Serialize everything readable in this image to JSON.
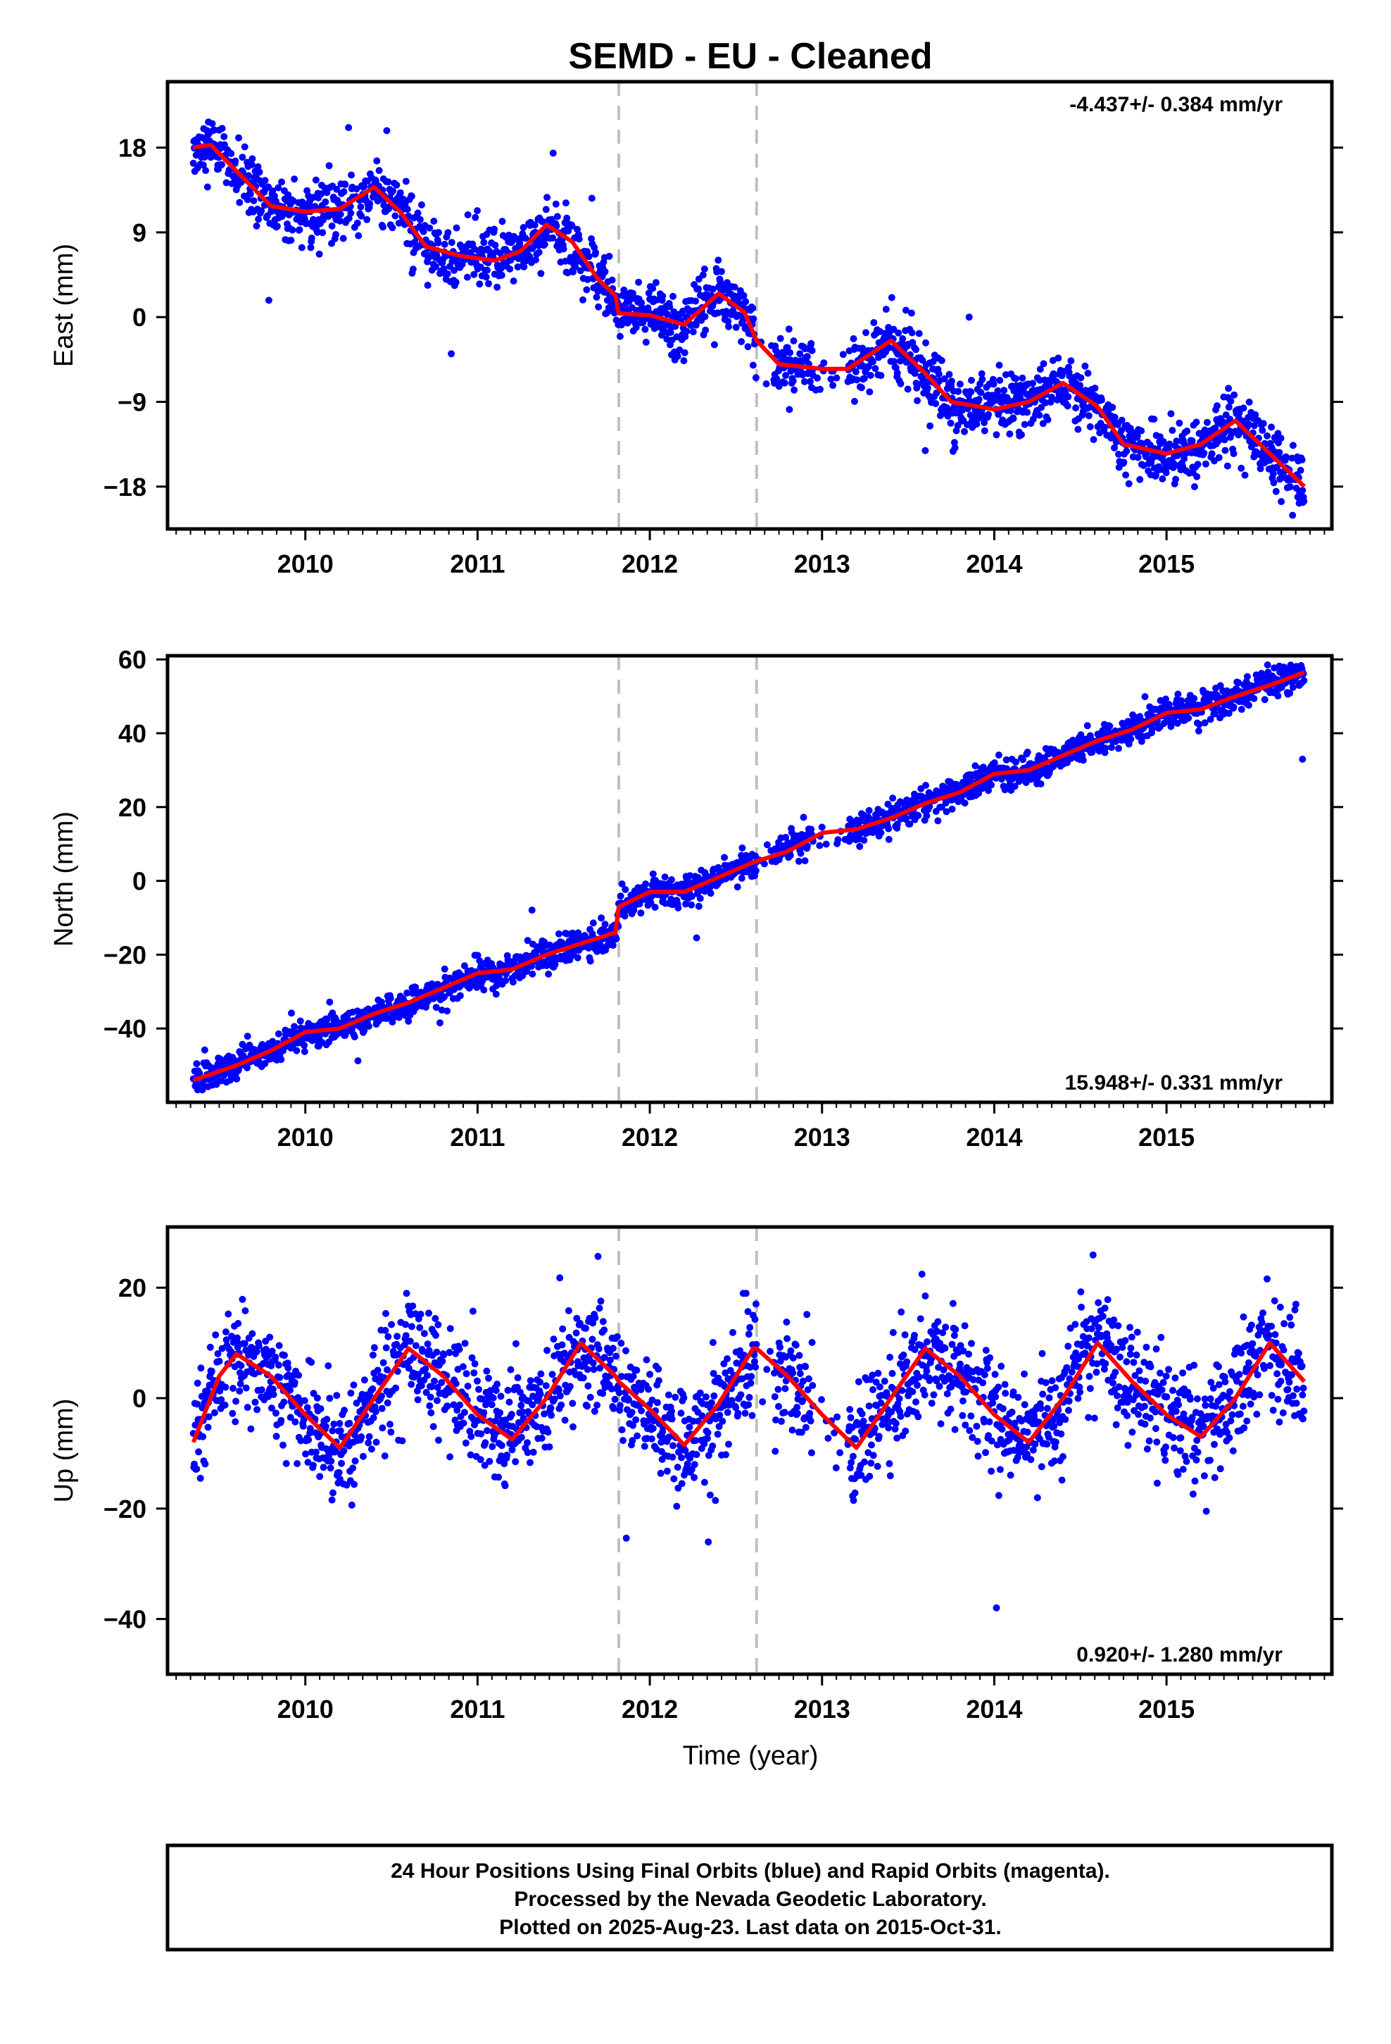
{
  "title": "SEMD  - EU - Cleaned",
  "xlabel": "Time (year)",
  "caption": [
    "24 Hour Positions Using Final Orbits (blue) and Rapid Orbits (magenta).",
    "Processed by the Nevada Geodetic Laboratory.",
    "Plotted on 2025-Aug-23. Last data on 2015-Oct-31."
  ],
  "colors": {
    "points": "#0000ff",
    "fit": "#ff0000",
    "breaks": "#c0c0c0",
    "frame": "#000000"
  },
  "chart_data": [
    {
      "type": "scatter",
      "ylabel": "East (mm)",
      "rate": "-4.437+/- 0.384 mm/yr",
      "rate_position": "top-right",
      "xlim": [
        2009.2,
        2015.96
      ],
      "ylim": [
        -22.5,
        25
      ],
      "xticks": [
        2010,
        2011,
        2012,
        2013,
        2014,
        2015
      ],
      "xtick_labels": [
        "2010",
        "2011",
        "2012",
        "2013",
        "2014",
        "2015"
      ],
      "yticks": [
        18,
        9,
        0,
        -9,
        -18
      ],
      "ytick_labels": [
        "18",
        "9",
        "0",
        "−9",
        "−18"
      ],
      "break_years": [
        2011.82,
        2012.62
      ],
      "fit": {
        "x": [
          2009.35,
          2009.45,
          2009.6,
          2009.8,
          2010.0,
          2010.2,
          2010.4,
          2010.55,
          2010.7,
          2010.9,
          2011.1,
          2011.25,
          2011.4,
          2011.55,
          2011.7,
          2011.8,
          2011.82,
          2012.0,
          2012.2,
          2012.4,
          2012.55,
          2012.62,
          2012.75,
          2013.0,
          2013.15,
          2013.4,
          2013.6,
          2013.75,
          2014.0,
          2014.2,
          2014.4,
          2014.6,
          2014.75,
          2015.0,
          2015.2,
          2015.4,
          2015.6,
          2015.8
        ],
        "y": [
          18,
          18.3,
          15.5,
          11.8,
          11.2,
          11.5,
          13.8,
          11.2,
          7.5,
          6.5,
          6.0,
          7.0,
          9.8,
          8.0,
          4.0,
          2.3,
          0.4,
          0.2,
          -0.8,
          2.5,
          0.5,
          -2.5,
          -5.0,
          -5.5,
          -5.5,
          -2.5,
          -6.0,
          -9.0,
          -9.8,
          -9.0,
          -7.0,
          -9.5,
          -13.5,
          -14.5,
          -13.5,
          -11.0,
          -14.5,
          -18.0
        ]
      },
      "points_description": "Daily positions scattered about the fit with roughly ±1.5 mm scatter."
    },
    {
      "type": "scatter",
      "ylabel": "North (mm)",
      "rate": "15.948+/- 0.331 mm/yr",
      "rate_position": "bottom-right",
      "xlim": [
        2009.2,
        2015.96
      ],
      "ylim": [
        -60,
        61
      ],
      "xticks": [
        2010,
        2011,
        2012,
        2013,
        2014,
        2015
      ],
      "xtick_labels": [
        "2010",
        "2011",
        "2012",
        "2013",
        "2014",
        "2015"
      ],
      "yticks": [
        60,
        40,
        20,
        0,
        -20,
        -40
      ],
      "ytick_labels": [
        "60",
        "40",
        "20",
        "0",
        "−20",
        "−40"
      ],
      "break_years": [
        2011.82,
        2012.62
      ],
      "fit": {
        "x": [
          2009.35,
          2009.6,
          2009.8,
          2010.0,
          2010.2,
          2010.4,
          2010.6,
          2010.8,
          2011.0,
          2011.2,
          2011.4,
          2011.6,
          2011.8,
          2011.82,
          2012.0,
          2012.2,
          2012.4,
          2012.6,
          2012.8,
          2013.0,
          2013.2,
          2013.4,
          2013.6,
          2013.8,
          2014.0,
          2014.2,
          2014.4,
          2014.6,
          2014.8,
          2015.0,
          2015.2,
          2015.4,
          2015.6,
          2015.8
        ],
        "y": [
          -54,
          -50,
          -46,
          -41,
          -40,
          -36,
          -33,
          -29,
          -25,
          -24,
          -20,
          -17,
          -14,
          -7,
          -3,
          -3,
          1,
          5,
          8,
          13,
          14,
          17,
          21,
          24,
          29,
          30,
          34,
          38,
          41,
          45.5,
          46.5,
          50,
          53,
          56.5
        ]
      },
      "points_description": "Daily positions scattered about the fit with roughly ±2 mm scatter."
    },
    {
      "type": "scatter",
      "ylabel": "Up (mm)",
      "rate": "0.920+/- 1.280 mm/yr",
      "rate_position": "bottom-right",
      "xlim": [
        2009.2,
        2015.96
      ],
      "ylim": [
        -50,
        31
      ],
      "xticks": [
        2010,
        2011,
        2012,
        2013,
        2014,
        2015
      ],
      "xtick_labels": [
        "2010",
        "2011",
        "2012",
        "2013",
        "2014",
        "2015"
      ],
      "yticks": [
        20,
        0,
        -20,
        -40
      ],
      "ytick_labels": [
        "20",
        "0",
        "−20",
        "−40"
      ],
      "break_years": [
        2011.82,
        2012.62
      ],
      "fit": {
        "x": [
          2009.35,
          2009.5,
          2009.6,
          2009.8,
          2010.0,
          2010.2,
          2010.4,
          2010.6,
          2010.8,
          2011.0,
          2011.2,
          2011.4,
          2011.6,
          2011.8,
          2011.82,
          2012.0,
          2012.2,
          2012.4,
          2012.6,
          2012.62,
          2012.8,
          2013.0,
          2013.2,
          2013.4,
          2013.6,
          2013.8,
          2014.0,
          2014.2,
          2014.4,
          2014.6,
          2014.8,
          2015.0,
          2015.2,
          2015.4,
          2015.6,
          2015.8
        ],
        "y": [
          -8,
          4,
          8,
          4,
          -3,
          -9,
          0,
          9,
          4,
          -3,
          -7.5,
          0,
          10,
          4,
          3,
          -2,
          -8.5,
          -1,
          9,
          9,
          4,
          -3,
          -9,
          0,
          9,
          4,
          -3,
          -8,
          0,
          10,
          3,
          -3,
          -7,
          0,
          10,
          3
        ]
      },
      "points_description": "Daily positions scattered about the fit with roughly ±5 mm scatter and occasional outliers."
    }
  ]
}
